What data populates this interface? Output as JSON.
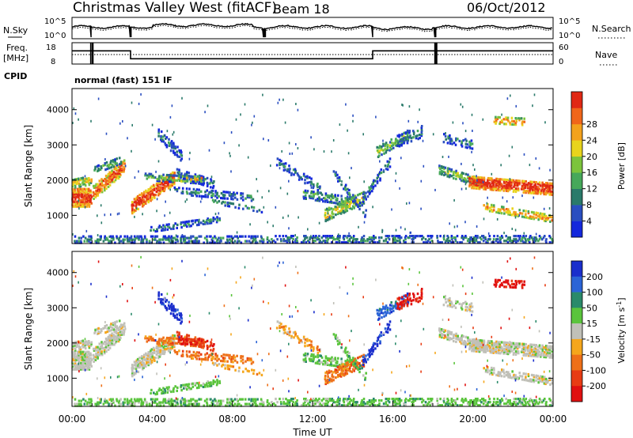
{
  "header": {
    "radar": "Christmas Valley West (fitACF)",
    "beam": "Beam 18",
    "date": "06/Oct/2012"
  },
  "noise_panel": {
    "left_label": "N.Sky",
    "right_label": "N.Search",
    "left_ticks": [
      "10^5",
      "10^0"
    ],
    "right_ticks": [
      "10^5",
      "10^0"
    ]
  },
  "freq_panel": {
    "left_label_1": "Freq.",
    "left_label_2": "[MHz]",
    "right_label": "Nave",
    "left_ticks": [
      "18",
      "8"
    ],
    "right_ticks": [
      "60",
      "0"
    ],
    "freq_mhz_steps": [
      {
        "t": [
          0.0,
          2.92
        ],
        "v": 14.2
      },
      {
        "t": [
          2.92,
          15.0
        ],
        "v": 10.5
      },
      {
        "t": [
          15.0,
          24.0
        ],
        "v": 14.2
      }
    ]
  },
  "cpid": {
    "label": "CPID",
    "value": "normal (fast) 151 IF"
  },
  "chart_data": [
    {
      "type": "heatmap",
      "name": "power",
      "ylabel": "Slant Range [km]",
      "y_ticks": [
        1000,
        2000,
        3000,
        4000
      ],
      "ylim": [
        200,
        4600
      ],
      "colorbar": {
        "title": "Power [dB]",
        "ticks": [
          "4",
          "8",
          "12",
          "16",
          "20",
          "24",
          "28"
        ],
        "colors": [
          "#1428dc",
          "#2a4ec0",
          "#2a7a6a",
          "#46a85a",
          "#7cc43c",
          "#e8d41c",
          "#f3a21c",
          "#f0661a",
          "#e02814"
        ]
      }
    },
    {
      "type": "heatmap",
      "name": "velocity",
      "ylabel": "Slant Range [km]",
      "xlabel": "Time UT",
      "y_ticks": [
        1000,
        2000,
        3000,
        4000
      ],
      "ylim": [
        200,
        4600
      ],
      "x_ticks": [
        "00:00",
        "04:00",
        "08:00",
        "12:00",
        "16:00",
        "20:00",
        "00:00"
      ],
      "colorbar": {
        "title": "Velocity [m s^-1]",
        "ticks": [
          "200",
          "100",
          "50",
          "15",
          "-15",
          "-50",
          "-100",
          "-200"
        ],
        "colors": [
          "#1a2ecc",
          "#2b64d6",
          "#2a8a6a",
          "#5ac43c",
          "#c0c0b8",
          "#f5a61c",
          "#ee7018",
          "#e83c14",
          "#e01010"
        ]
      }
    }
  ]
}
